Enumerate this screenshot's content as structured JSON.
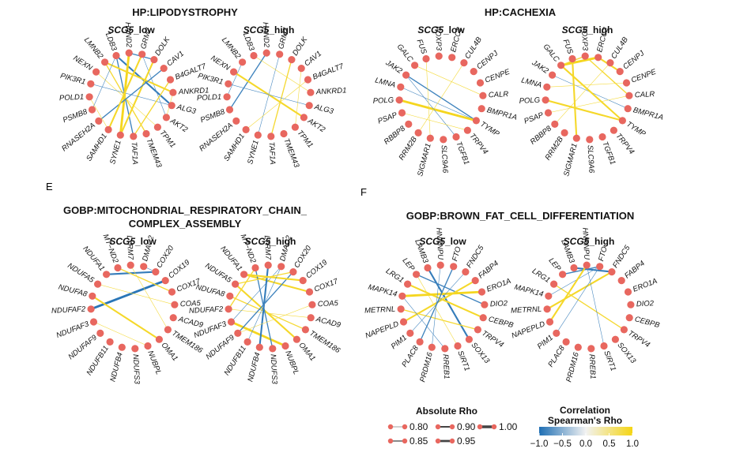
{
  "panel_letters": {
    "e": "E",
    "f": "F"
  },
  "panels": [
    {
      "id": "lipodystrophy",
      "title_lines": [
        "HP:LIPODYSTROPHY"
      ],
      "networks": [
        {
          "label": "SCG5",
          "suffix": "_low",
          "genes": [
            "GRM7",
            "DOLK",
            "CAV1",
            "B4GALT7",
            "ANKRD1",
            "ALG3",
            "AKT2",
            "TPM1",
            "TMEM43",
            "TAF1A",
            "SYNE1",
            "SAMHD1",
            "RNASEH2A",
            "PSMB8",
            "POLD1",
            "PIK3R1",
            "NEXN",
            "LMNB2",
            "LDB3",
            "HAND2"
          ],
          "edges": [
            {
              "a": "LDB3",
              "b": "ALG3",
              "rho": -0.9
            },
            {
              "a": "LDB3",
              "b": "TAF1A",
              "rho": -0.85
            },
            {
              "a": "HAND2",
              "b": "SYNE1",
              "rho": 0.95
            },
            {
              "a": "GRM7",
              "b": "AKT2",
              "rho": -0.8
            },
            {
              "a": "LMNB2",
              "b": "ANKRD1",
              "rho": 0.9
            },
            {
              "a": "LMNB2",
              "b": "TMEM43",
              "rho": 0.85
            },
            {
              "a": "NEXN",
              "b": "TPM1",
              "rho": 0.8
            },
            {
              "a": "DOLK",
              "b": "SYNE1",
              "rho": 0.9
            },
            {
              "a": "CAV1",
              "b": "RNASEH2A",
              "rho": -0.85
            },
            {
              "a": "PIK3R1",
              "b": "ALG3",
              "rho": -0.8
            },
            {
              "a": "POLD1",
              "b": "SAMHD1",
              "rho": 0.8
            },
            {
              "a": "LDB3",
              "b": "PSMB8",
              "rho": -0.8
            },
            {
              "a": "B4GALT7",
              "b": "TAF1A",
              "rho": 0.85
            },
            {
              "a": "ANKRD1",
              "b": "AKT2",
              "rho": 0.8
            },
            {
              "a": "HAND2",
              "b": "DOLK",
              "rho": -0.85
            },
            {
              "a": "GRM7",
              "b": "SAMHD1",
              "rho": 0.9
            }
          ]
        },
        {
          "label": "SCG5",
          "suffix": "_high",
          "genes": [
            "GRM7",
            "DOLK",
            "CAV1",
            "B4GALT7",
            "ANKRD1",
            "ALG3",
            "AKT2",
            "TPM1",
            "TMEM43",
            "TAF1A",
            "SYNE1",
            "SAMHD1",
            "RNASEH2A",
            "PSMB8",
            "POLD1",
            "PIK3R1",
            "NEXN",
            "LMNB2",
            "LDB3",
            "HAND2"
          ],
          "edges": [
            {
              "a": "HAND2",
              "b": "PSMB8",
              "rho": -0.85
            },
            {
              "a": "LMNB2",
              "b": "POLD1",
              "rho": -0.8
            },
            {
              "a": "GRM7",
              "b": "SYNE1",
              "rho": -0.8
            },
            {
              "a": "DOLK",
              "b": "TAF1A",
              "rho": 0.85
            },
            {
              "a": "NEXN",
              "b": "AKT2",
              "rho": 0.9
            },
            {
              "a": "CAV1",
              "b": "TPM1",
              "rho": 0.8
            },
            {
              "a": "LDB3",
              "b": "ANKRD1",
              "rho": 0.8
            },
            {
              "a": "PIK3R1",
              "b": "ALG3",
              "rho": -0.8
            },
            {
              "a": "B4GALT7",
              "b": "SAMHD1",
              "rho": 0.8
            }
          ]
        }
      ]
    },
    {
      "id": "cachexia",
      "title_lines": [
        "HP:CACHEXIA"
      ],
      "networks": [
        {
          "label": "SCG5",
          "suffix": "_low",
          "genes": [
            "ERCC2",
            "CUL4B",
            "CENPJ",
            "CENPE",
            "CALR",
            "BMPR1A",
            "TYMP",
            "TRPV4",
            "TGFB1",
            "SLC9A6",
            "SIGMAR1",
            "RRM2B",
            "RBBP8",
            "PSAP",
            "POLG",
            "LMNA",
            "JAK2",
            "GALC",
            "FUS",
            "FOXP3"
          ],
          "edges": [
            {
              "a": "JAK2",
              "b": "TYMP",
              "rho": -0.85
            },
            {
              "a": "LMNA",
              "b": "TYMP",
              "rho": -0.8
            },
            {
              "a": "POLG",
              "b": "TYMP",
              "rho": 0.95
            },
            {
              "a": "JAK2",
              "b": "TGFB1",
              "rho": -0.8
            },
            {
              "a": "PSAP",
              "b": "TRPV4",
              "rho": 0.8
            },
            {
              "a": "FUS",
              "b": "SIGMAR1",
              "rho": 0.8
            },
            {
              "a": "CUL4B",
              "b": "RRM2B",
              "rho": 0.8
            },
            {
              "a": "GALC",
              "b": "CALR",
              "rho": 0.8
            }
          ]
        },
        {
          "label": "SCG5",
          "suffix": "_high",
          "genes": [
            "ERCC2",
            "CUL4B",
            "CENPJ",
            "CENPE",
            "CALR",
            "BMPR1A",
            "TYMP",
            "TRPV4",
            "TGFB1",
            "SLC9A6",
            "SIGMAR1",
            "RRM2B",
            "RBBP8",
            "PSAP",
            "POLG",
            "LMNA",
            "JAK2",
            "GALC",
            "FUS",
            "FOXP3"
          ],
          "edges": [
            {
              "a": "GALC",
              "b": "ERCC2",
              "rho": 0.95
            },
            {
              "a": "ERCC2",
              "b": "CENPJ",
              "rho": 0.9
            },
            {
              "a": "JAK2",
              "b": "BMPR1A",
              "rho": -0.8
            },
            {
              "a": "FUS",
              "b": "SIGMAR1",
              "rho": 0.9
            },
            {
              "a": "FOXP3",
              "b": "CALR",
              "rho": 0.85
            },
            {
              "a": "CUL4B",
              "b": "RBBP8",
              "rho": 0.8
            },
            {
              "a": "GALC",
              "b": "TYMP",
              "rho": 0.9
            },
            {
              "a": "LMNA",
              "b": "CENPE",
              "rho": 0.8
            },
            {
              "a": "POLG",
              "b": "TYMP",
              "rho": 0.9
            },
            {
              "a": "PSAP",
              "b": "CALR",
              "rho": 0.8
            },
            {
              "a": "GALC",
              "b": "FOXP3",
              "rho": 0.85
            }
          ]
        }
      ]
    },
    {
      "id": "mito",
      "title_lines": [
        "GOBP:MITOCHONDRIAL_RESPIRATORY_CHAIN_",
        "COMPLEX_ASSEMBLY"
      ],
      "networks": [
        {
          "label": "SCG5",
          "suffix": "_low",
          "genes": [
            "DMAC2",
            "COX20",
            "COX19",
            "COX17",
            "COA5",
            "ACAD9",
            "TMEM186",
            "OMA1",
            "NUBPL",
            "NDUFS3",
            "NDUFB4",
            "NDUFB11",
            "NDUFAF9",
            "NDUFAF3",
            "NDUFAF2",
            "NDUFA8",
            "NDUFA5",
            "NDUFA1",
            "MT−ND2",
            "LYRM7"
          ],
          "edges": [
            {
              "a": "NDUFA1",
              "b": "COX20",
              "rho": -0.9
            },
            {
              "a": "NDUFAF2",
              "b": "COX19",
              "rho": -0.95
            },
            {
              "a": "NDUFA5",
              "b": "COA5",
              "rho": 0.8
            },
            {
              "a": "NDUFA8",
              "b": "OMA1",
              "rho": 0.9
            },
            {
              "a": "MT−ND2",
              "b": "COX17",
              "rho": 0.85
            },
            {
              "a": "NDUFAF3",
              "b": "NUBPL",
              "rho": 0.8
            },
            {
              "a": "LYRM7",
              "b": "TMEM186",
              "rho": 0.8
            },
            {
              "a": "DMAC2",
              "b": "COX20",
              "rho": -0.8
            }
          ]
        },
        {
          "label": "SCG5",
          "suffix": "_high",
          "genes": [
            "DMAC2",
            "COX20",
            "COX19",
            "COX17",
            "COA5",
            "ACAD9",
            "TMEM186",
            "OMA1",
            "NUBPL",
            "NDUFS3",
            "NDUFB4",
            "NDUFB11",
            "NDUFAF9",
            "NDUFAF3",
            "NDUFAF2",
            "NDUFA8",
            "NDUFA5",
            "NDUFA1",
            "MT−ND2",
            "LYRM7"
          ],
          "edges": [
            {
              "a": "NDUFA1",
              "b": "COX17",
              "rho": 0.9
            },
            {
              "a": "NDUFA5",
              "b": "OMA1",
              "rho": 0.9
            },
            {
              "a": "NDUFA8",
              "b": "TMEM186",
              "rho": 0.85
            },
            {
              "a": "NDUFAF2",
              "b": "ACAD9",
              "rho": 0.8
            },
            {
              "a": "NDUFAF3",
              "b": "NUBPL",
              "rho": 0.95
            },
            {
              "a": "MT−ND2",
              "b": "NDUFS3",
              "rho": -0.85
            },
            {
              "a": "LYRM7",
              "b": "NDUFB4",
              "rho": -0.9
            },
            {
              "a": "DMAC2",
              "b": "NDUFAF3",
              "rho": -0.8
            },
            {
              "a": "COX20",
              "b": "NDUFAF9",
              "rho": -0.85
            },
            {
              "a": "COX19",
              "b": "NDUFA1",
              "rho": 0.9
            },
            {
              "a": "MT−ND2",
              "b": "NDUFAF2",
              "rho": 0.85
            },
            {
              "a": "COA5",
              "b": "NDUFAF9",
              "rho": 0.8
            },
            {
              "a": "DMAC2",
              "b": "NDUFB11",
              "rho": -0.8
            },
            {
              "a": "COX20",
              "b": "NDUFA5",
              "rho": 0.85
            }
          ]
        }
      ]
    },
    {
      "id": "brownfat",
      "title_lines": [
        "GOBP:BROWN_FAT_CELL_DIFFERENTIATION"
      ],
      "networks": [
        {
          "label": "SCG5",
          "suffix": "_low",
          "genes": [
            "FTO",
            "FNDC5",
            "FABP4",
            "ERO1A",
            "DIO2",
            "CEBPB",
            "TRPV4",
            "SOX13",
            "SIRT1",
            "RREB1",
            "PRDM16",
            "PLAC8",
            "PIM1",
            "NAPEPLD",
            "METRNL",
            "MAPK14",
            "LRG1",
            "LEP",
            "LAMB3",
            "HNRNPU"
          ],
          "edges": [
            {
              "a": "LAMB3",
              "b": "SOX13",
              "rho": -0.9
            },
            {
              "a": "LEP",
              "b": "DIO2",
              "rho": -0.85
            },
            {
              "a": "LRG1",
              "b": "CEBPB",
              "rho": 0.9
            },
            {
              "a": "MAPK14",
              "b": "ERO1A",
              "rho": 0.95
            },
            {
              "a": "METRNL",
              "b": "TRPV4",
              "rho": 0.85
            },
            {
              "a": "NAPEPLD",
              "b": "FABP4",
              "rho": 0.9
            },
            {
              "a": "PIM1",
              "b": "FNDC5",
              "rho": -0.8
            },
            {
              "a": "PLAC8",
              "b": "FTO",
              "rho": -0.85
            },
            {
              "a": "HNRNPU",
              "b": "PRDM16",
              "rho": -0.8
            },
            {
              "a": "LEP",
              "b": "SIRT1",
              "rho": 0.8
            },
            {
              "a": "MAPK14",
              "b": "RREB1",
              "rho": -0.8
            }
          ]
        },
        {
          "label": "SCG5",
          "suffix": "_high",
          "genes": [
            "FTO",
            "FNDC5",
            "FABP4",
            "ERO1A",
            "DIO2",
            "CEBPB",
            "TRPV4",
            "SOX13",
            "SIRT1",
            "RREB1",
            "PRDM16",
            "PLAC8",
            "PIM1",
            "NAPEPLD",
            "METRNL",
            "MAPK14",
            "LRG1",
            "LEP",
            "LAMB3",
            "HNRNPU"
          ],
          "edges": [
            {
              "a": "LEP",
              "b": "FTO",
              "rho": -0.85
            },
            {
              "a": "LAMB3",
              "b": "FNDC5",
              "rho": -0.9
            },
            {
              "a": "LRG1",
              "b": "TRPV4",
              "rho": 0.85
            },
            {
              "a": "MAPK14",
              "b": "FTO",
              "rho": -0.8
            },
            {
              "a": "METRNL",
              "b": "FNDC5",
              "rho": 0.9
            },
            {
              "a": "NAPEPLD",
              "b": "HNRNPU",
              "rho": 0.9
            },
            {
              "a": "PIM1",
              "b": "FTO",
              "rho": -0.8
            },
            {
              "a": "HNRNPU",
              "b": "SIRT1",
              "rho": -0.8
            }
          ]
        }
      ]
    }
  ],
  "legend": {
    "size_title": "Absolute Rho",
    "size_entries": [
      {
        "label": "0.80",
        "value": 0.8
      },
      {
        "label": "0.90",
        "value": 0.9
      },
      {
        "label": "1.00",
        "value": 1.0
      },
      {
        "label": "0.85",
        "value": 0.85
      },
      {
        "label": "0.95",
        "value": 0.95
      }
    ],
    "color_title": "Correlation",
    "color_subtitle": "Spearman's Rho",
    "color_ticks": [
      "−1.0",
      "−0.5",
      "0.0",
      "0.5",
      "1.0"
    ],
    "colors": {
      "negative": "#1f6fb4",
      "neutral": "#f2f2f2",
      "positive": "#f5d514",
      "node": "#e8675f"
    }
  }
}
